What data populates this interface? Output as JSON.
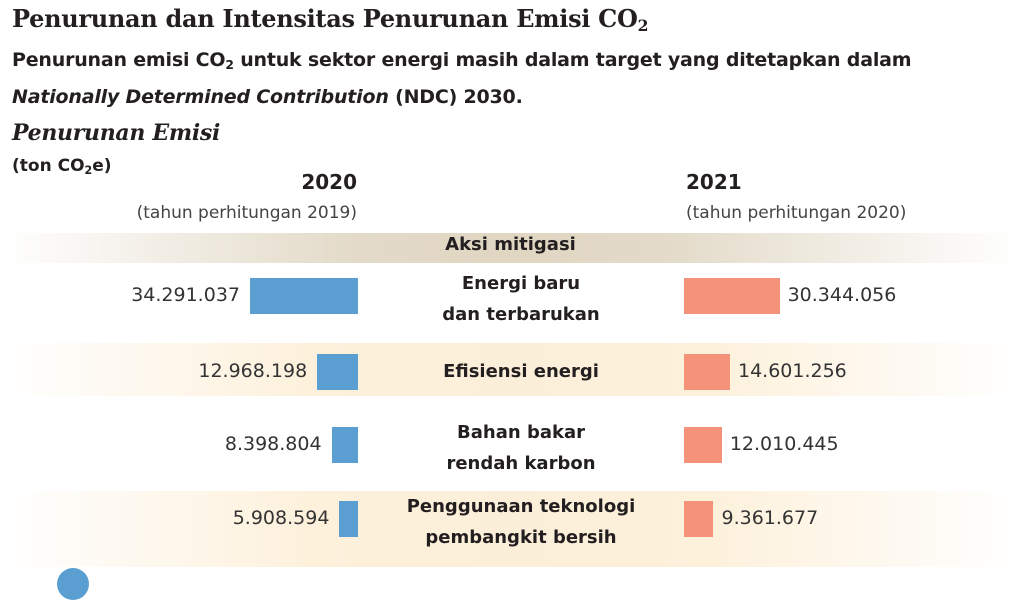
{
  "header": {
    "title": "Penurunan dan Intensitas Penurunan Emisi CO",
    "title_sub": "2",
    "subtitle_line1_a": "Penurunan emisi CO",
    "subtitle_line1_sub": "2",
    "subtitle_line1_b": " untuk sektor energi masih dalam target yang ditetapkan dalam",
    "subtitle_line2_italic": "Nationally Determined Contribution",
    "subtitle_line2_rest": " (NDC) 2030."
  },
  "chart_data": {
    "type": "bar",
    "title": "Penurunan Emisi",
    "unit_a": "(ton CO",
    "unit_sub": "2",
    "unit_b": "e)",
    "group_header": "Aksi mitigasi",
    "categories": [
      [
        "Energi baru",
        "dan terbarukan"
      ],
      [
        "Efisiensi energi"
      ],
      [
        "Bahan bakar",
        "rendah karbon"
      ],
      [
        "Penggunaan teknologi",
        "pembangkit bersih"
      ]
    ],
    "series": [
      {
        "name": "2020",
        "note": "(tahun perhitungan 2019)",
        "color": "#5b9fd2",
        "values": [
          34291037,
          12968198,
          8398804,
          5908594
        ],
        "labels": [
          "34.291.037",
          "12.968.198",
          "8.398.804",
          "5.908.594"
        ]
      },
      {
        "name": "2021",
        "note": "(tahun perhitungan 2020)",
        "color": "#f5937a",
        "values": [
          30344056,
          14601256,
          12010445,
          9361677
        ],
        "labels": [
          "30.344.056",
          "14.601.256",
          "12.010.445",
          "9.361.677"
        ]
      }
    ]
  }
}
